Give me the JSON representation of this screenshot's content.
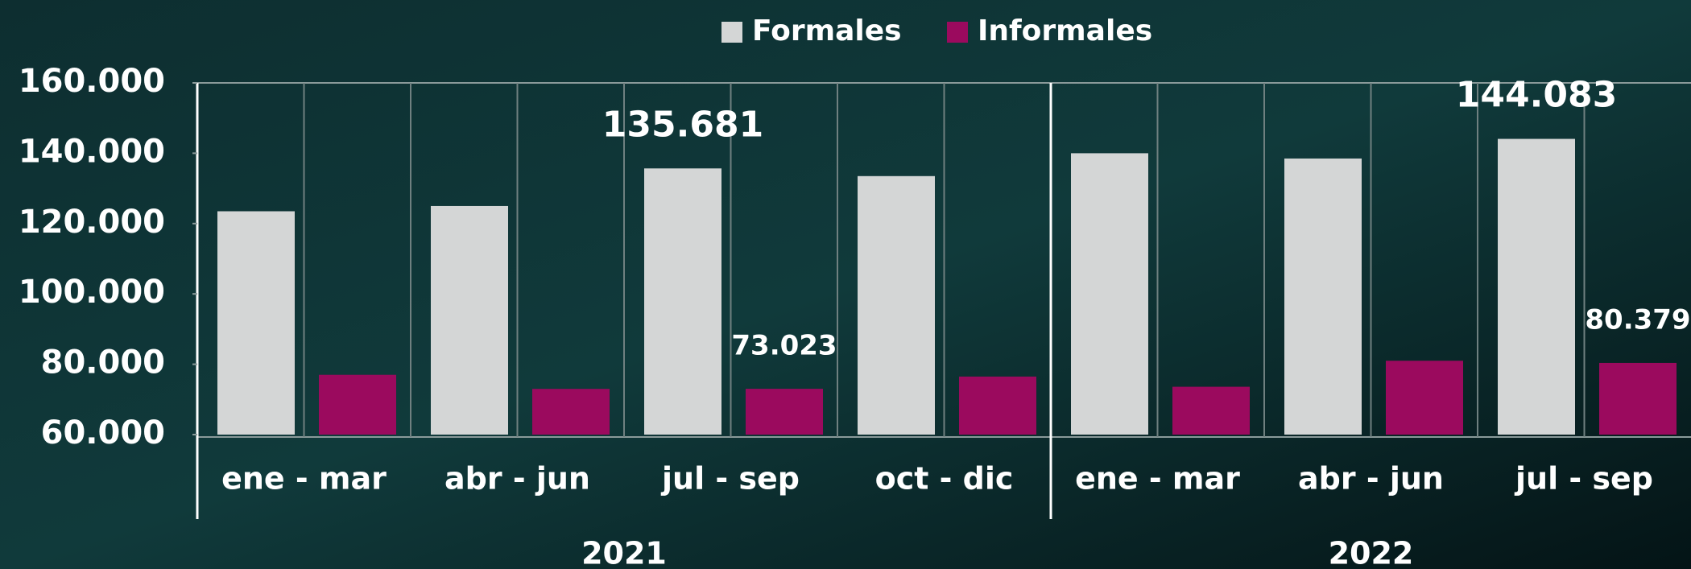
{
  "chart_data": {
    "type": "bar",
    "groups": [
      {
        "name": "2021",
        "categories": [
          "ene - mar",
          "abr - jun",
          "jul - sep",
          "oct - dic"
        ]
      },
      {
        "name": "2022",
        "categories": [
          "ene - mar",
          "abr - jun",
          "jul - sep"
        ]
      }
    ],
    "series": [
      {
        "name": "Formales",
        "color": "#d4d6d6",
        "values": [
          123500,
          125000,
          135681,
          133500,
          140000,
          138500,
          144083
        ],
        "value_labels": [
          null,
          null,
          "135.681",
          null,
          null,
          null,
          "144.083"
        ]
      },
      {
        "name": "Informales",
        "color": "#9b0a5e",
        "values": [
          77000,
          73000,
          73023,
          76500,
          73600,
          81000,
          80379
        ],
        "value_labels": [
          null,
          null,
          "73.023",
          null,
          null,
          null,
          "80.379"
        ]
      }
    ],
    "ylim": [
      60000,
      160000
    ],
    "yticks": [
      {
        "value": 60000,
        "label": "60.000"
      },
      {
        "value": 80000,
        "label": "80.000"
      },
      {
        "value": 100000,
        "label": "100.000"
      },
      {
        "value": 120000,
        "label": "120.000"
      },
      {
        "value": 140000,
        "label": "140.000"
      },
      {
        "value": 160000,
        "label": "160.000"
      }
    ],
    "legend": "top"
  }
}
